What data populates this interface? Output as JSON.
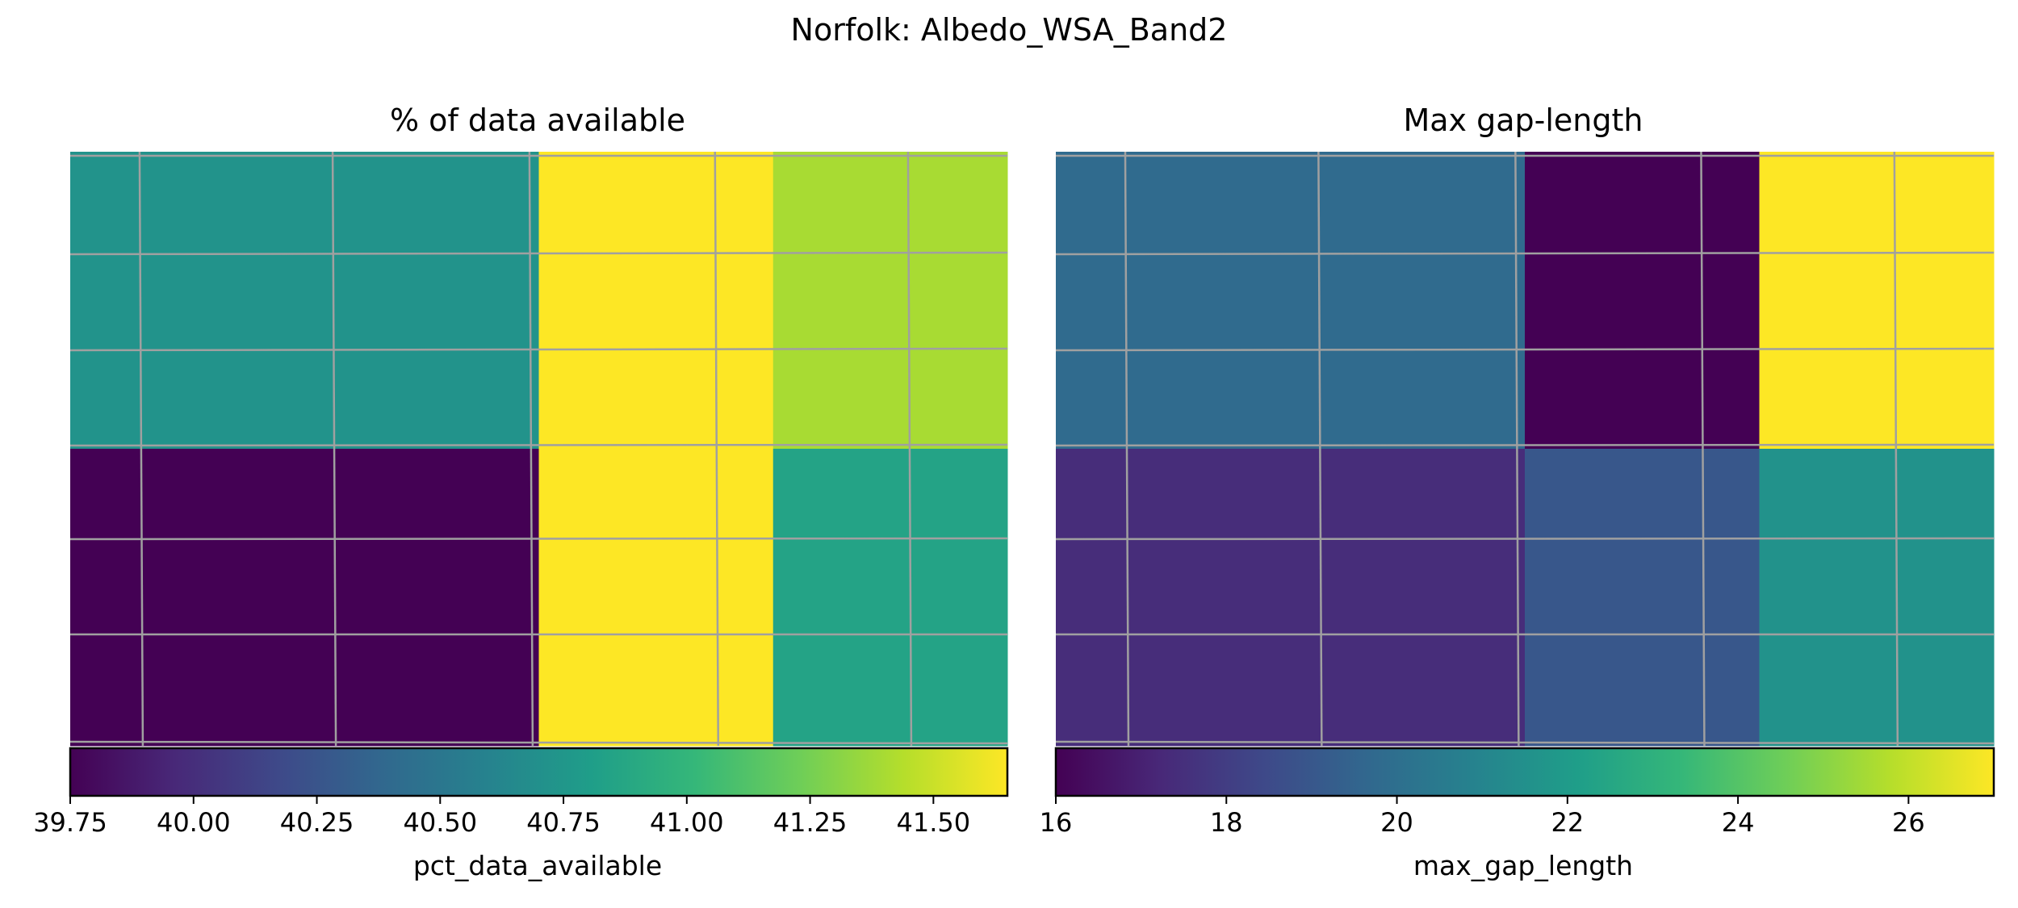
{
  "figure": {
    "suptitle": "Norfolk: Albedo_WSA_Band2"
  },
  "chart_data": [
    {
      "type": "heatmap",
      "title": "% of data available",
      "colormap": "viridis",
      "grid": true,
      "cells": [
        [
          40.72,
          40.72,
          41.65,
          41.4
        ],
        [
          39.75,
          39.75,
          41.65,
          40.85
        ]
      ],
      "colorbar": {
        "label": "pct_data_available",
        "range": [
          39.75,
          41.65
        ],
        "ticks": [
          "39.75",
          "40.00",
          "40.25",
          "40.50",
          "40.75",
          "41.00",
          "41.25",
          "41.50"
        ],
        "tick_values": [
          39.75,
          40.0,
          40.25,
          40.5,
          40.75,
          41.0,
          41.25,
          41.5
        ]
      }
    },
    {
      "type": "heatmap",
      "title": "Max gap-length",
      "colormap": "viridis",
      "grid": true,
      "cells": [
        [
          19.8,
          19.8,
          16.0,
          27.0
        ],
        [
          17.4,
          17.4,
          19.0,
          21.6
        ]
      ],
      "colorbar": {
        "label": "max_gap_length",
        "range": [
          16,
          27
        ],
        "ticks": [
          "16",
          "18",
          "20",
          "22",
          "24",
          "26"
        ],
        "tick_values": [
          16,
          18,
          20,
          22,
          24,
          26
        ]
      }
    }
  ]
}
